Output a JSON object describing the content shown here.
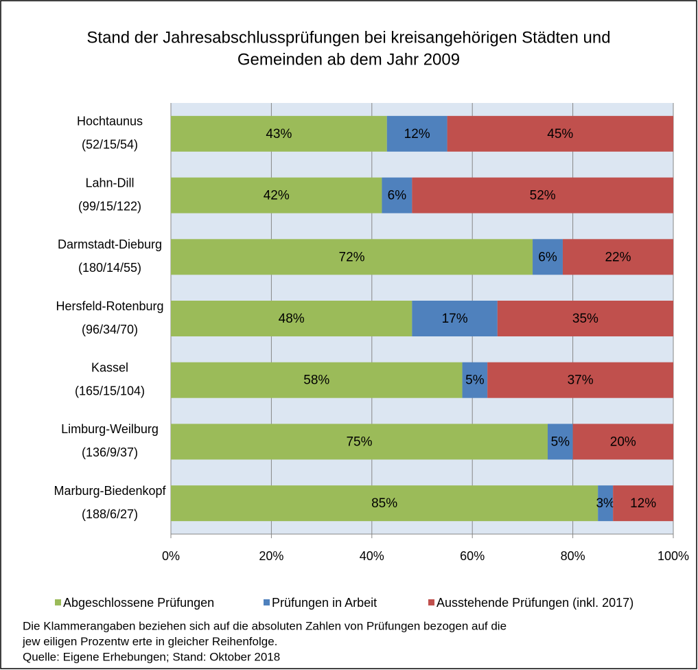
{
  "chart_data": {
    "type": "stacked_barh",
    "title": [
      "Stand der Jahresabschlussprüfungen bei kreisangehörigen Städten und",
      "Gemeinden ab dem Jahr 2009"
    ],
    "categories": [
      [
        "Hochtaunus",
        "(52/15/54)"
      ],
      [
        "Lahn-Dill",
        "(99/15/122)"
      ],
      [
        "Darmstadt-Dieburg",
        "(180/14/55)"
      ],
      [
        "Hersfeld-Rotenburg",
        "(96/34/70)"
      ],
      [
        "Kassel",
        "(165/15/104)"
      ],
      [
        "Limburg-Weilburg",
        "(136/9/37)"
      ],
      [
        "Marburg-Biedenkopf",
        "(188/6/27)"
      ]
    ],
    "series": [
      {
        "name": "Abgeschlossene Prüfungen",
        "color": "#9bbb59",
        "values": [
          43,
          42,
          72,
          48,
          58,
          75,
          85
        ],
        "value_labels": [
          "43%",
          "42%",
          "72%",
          "48%",
          "58%",
          "75%",
          "85%"
        ]
      },
      {
        "name": "Prüfungen in Arbeit",
        "color": "#4f81bd",
        "values": [
          12,
          6,
          6,
          17,
          5,
          5,
          3
        ],
        "value_labels": [
          "12%",
          "6%",
          "6%",
          "17%",
          "5%",
          "5%",
          "3%"
        ]
      },
      {
        "name": "Ausstehende Prüfungen (inkl. 2017)",
        "color": "#c0504d",
        "values": [
          45,
          52,
          22,
          35,
          37,
          20,
          12
        ],
        "value_labels": [
          "45%",
          "52%",
          "22%",
          "35%",
          "37%",
          "20%",
          "12%"
        ]
      }
    ],
    "xlim": [
      0,
      100
    ],
    "xticks": [
      {
        "value": 0,
        "label": "0%"
      },
      {
        "value": 20,
        "label": "20%"
      },
      {
        "value": 40,
        "label": "40%"
      },
      {
        "value": 60,
        "label": "60%"
      },
      {
        "value": 80,
        "label": "80%"
      },
      {
        "value": 100,
        "label": "100%"
      }
    ],
    "grid": true,
    "legend": "bottom",
    "notes": [
      "Die Klammerangaben beziehen sich auf die absoluten Zahlen von Prüfungen bezogen auf die",
      "jew eiligen Prozentw erte in gleicher Reihenfolge.",
      "Quelle: Eigene Erhebungen; Stand: Oktober 2018"
    ]
  }
}
